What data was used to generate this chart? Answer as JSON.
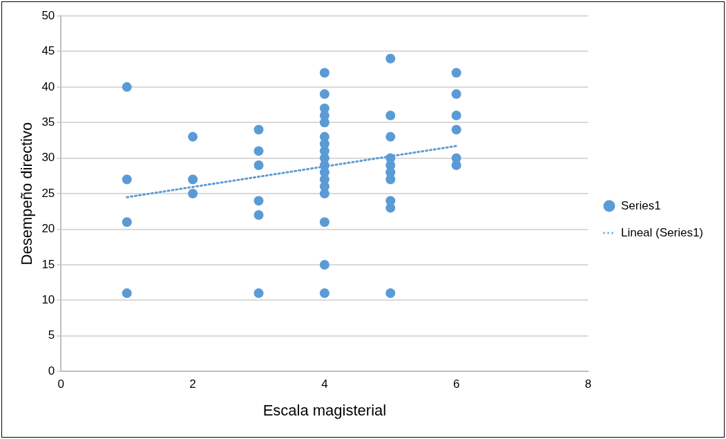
{
  "chart_data": {
    "type": "scatter",
    "xlabel": "Escala magisterial",
    "ylabel": "Desempeño directivo",
    "xlim": [
      0,
      8
    ],
    "xticks": [
      0,
      2,
      4,
      6,
      8
    ],
    "ylim": [
      0,
      50
    ],
    "yticks": [
      0,
      5,
      10,
      15,
      20,
      25,
      30,
      35,
      40,
      45,
      50
    ],
    "grid": "y",
    "legend": "right",
    "marker": "circle",
    "series": [
      {
        "name": "Series1",
        "color": "#5b9bd5",
        "type": "scatter",
        "x": [
          1,
          1,
          1,
          1,
          2,
          2,
          2,
          3,
          3,
          3,
          3,
          3,
          3,
          4,
          4,
          4,
          4,
          4,
          4,
          4,
          4,
          4,
          4,
          4,
          4,
          4,
          4,
          4,
          4,
          4,
          5,
          5,
          5,
          5,
          5,
          5,
          5,
          5,
          5,
          5,
          6,
          6,
          6,
          6,
          6,
          6
        ],
        "values": [
          40,
          27,
          21,
          11,
          33,
          27,
          25,
          34,
          31,
          29,
          24,
          22,
          11,
          42,
          39,
          37,
          36,
          35,
          33,
          32,
          31,
          30,
          29,
          28,
          27,
          26,
          25,
          21,
          15,
          11,
          44,
          36,
          33,
          30,
          29,
          28,
          27,
          24,
          23,
          11,
          42,
          39,
          36,
          34,
          30,
          29
        ]
      },
      {
        "name": "Lineal (Series1)",
        "color": "#5b9bd5",
        "type": "line",
        "line_style": "dotted",
        "marker": "none",
        "x": [
          1,
          6
        ],
        "values": [
          24.5,
          31.7
        ]
      }
    ]
  }
}
